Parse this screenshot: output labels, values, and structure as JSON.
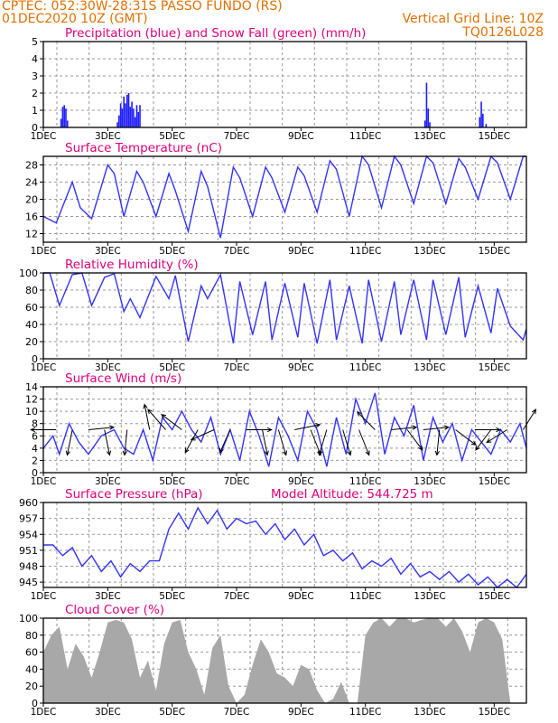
{
  "header": {
    "line1_left": "CPTEC:   052:30W-28:31S   PASSO FUNDO (RS)",
    "line2_left": "01DEC2020 10Z (GMT)",
    "line2_right": "Vertical Grid Line: 10Z",
    "line3_right": "TQ0126L028"
  },
  "colors": {
    "header_text": "#e07000",
    "panel_title": "#e0007a",
    "series_line": "#3333ff",
    "precip_bar": "#1e1eff",
    "snow": "#00aa00",
    "cloud_fill": "#a8a8a8",
    "wind_arrow": "#000000"
  },
  "x_axis": {
    "tick_labels": [
      "1DEC",
      "3DEC",
      "5DEC",
      "7DEC",
      "9DEC",
      "11DEC",
      "13DEC",
      "15DEC"
    ],
    "tick_days": [
      1,
      3,
      5,
      7,
      9,
      11,
      13,
      15
    ],
    "range_days": [
      1,
      16
    ]
  },
  "chart_data": [
    {
      "type": "bar",
      "title": "Precipitation (blue) and Snow Fall (green) (mm/h)",
      "ylim": [
        0,
        5
      ],
      "y_ticks": [
        0,
        1,
        2,
        3,
        4,
        5
      ],
      "grid": true,
      "series": [
        {
          "name": "Precipitation",
          "x": [
            1.55,
            1.6,
            1.65,
            1.7,
            1.75,
            3.3,
            3.35,
            3.4,
            3.45,
            3.5,
            3.55,
            3.6,
            3.65,
            3.7,
            3.75,
            3.8,
            3.85,
            3.9,
            3.95,
            4.0,
            12.85,
            12.9,
            12.95,
            13.0,
            14.55,
            14.6,
            14.65,
            14.75
          ],
          "values": [
            0.5,
            1.2,
            1.3,
            1.1,
            0.4,
            0.3,
            0.7,
            1.4,
            1.1,
            1.8,
            1.4,
            1.9,
            2.0,
            1.2,
            1.5,
            1.1,
            0.6,
            1.3,
            0.9,
            1.3,
            0.4,
            2.6,
            1.1,
            0.3,
            0.6,
            1.5,
            0.8,
            0.2
          ]
        },
        {
          "name": "Snow Fall",
          "x": [],
          "values": []
        }
      ]
    },
    {
      "type": "line",
      "title": "Surface Temperature (nC)",
      "ylim": [
        10,
        30
      ],
      "y_ticks": [
        12,
        16,
        20,
        24,
        28
      ],
      "grid": true,
      "series": [
        {
          "x": [
            1.0,
            1.4,
            1.9,
            2.15,
            2.5,
            3.0,
            3.2,
            3.5,
            3.9,
            4.1,
            4.5,
            4.9,
            5.1,
            5.5,
            5.9,
            6.1,
            6.5,
            6.9,
            7.1,
            7.5,
            7.9,
            8.1,
            8.5,
            8.9,
            9.1,
            9.5,
            9.9,
            10.1,
            10.5,
            10.9,
            11.1,
            11.5,
            11.9,
            12.1,
            12.5,
            12.9,
            13.1,
            13.5,
            13.9,
            14.1,
            14.5,
            14.9,
            15.1,
            15.5,
            15.9,
            16.0
          ],
          "values": [
            16,
            14.5,
            24,
            18,
            15.5,
            28,
            26,
            16,
            26.5,
            24,
            16,
            26,
            22,
            12.5,
            26.5,
            23,
            11,
            27.5,
            25,
            16,
            27.5,
            25,
            17,
            27.5,
            25.5,
            17,
            29,
            27,
            16,
            30,
            28,
            18,
            30,
            28,
            19,
            30,
            28.5,
            19,
            29.5,
            27.5,
            20,
            30,
            28.5,
            20,
            30,
            30
          ]
        }
      ]
    },
    {
      "type": "line",
      "title": "Relative Humidity (%)",
      "ylim": [
        0,
        100
      ],
      "y_ticks": [
        0,
        20,
        40,
        60,
        80,
        100
      ],
      "grid": true,
      "series": [
        {
          "x": [
            1.0,
            1.2,
            1.5,
            1.9,
            2.2,
            2.5,
            2.9,
            3.2,
            3.5,
            3.7,
            4.0,
            4.5,
            4.9,
            5.1,
            5.5,
            5.9,
            6.1,
            6.5,
            6.9,
            7.1,
            7.5,
            7.9,
            8.1,
            8.5,
            8.9,
            9.1,
            9.5,
            9.9,
            10.1,
            10.5,
            10.9,
            11.1,
            11.5,
            11.9,
            12.1,
            12.5,
            12.9,
            13.1,
            13.5,
            13.9,
            14.1,
            14.5,
            14.9,
            15.1,
            15.5,
            15.9,
            16.0
          ],
          "values": [
            100,
            100,
            62,
            98,
            100,
            62,
            95,
            99,
            55,
            70,
            48,
            96,
            70,
            97,
            20,
            85,
            70,
            98,
            18,
            90,
            28,
            90,
            22,
            88,
            25,
            88,
            18,
            92,
            22,
            85,
            18,
            92,
            20,
            90,
            28,
            92,
            22,
            92,
            28,
            95,
            25,
            85,
            30,
            82,
            38,
            22,
            35
          ]
        }
      ]
    },
    {
      "type": "line",
      "title": "Surface Wind (m/s)",
      "ylim": [
        0,
        14
      ],
      "y_ticks": [
        0,
        2,
        4,
        6,
        8,
        10,
        12,
        14
      ],
      "grid": true,
      "series": [
        {
          "x": [
            1.0,
            1.3,
            1.5,
            1.8,
            2.1,
            2.4,
            2.8,
            3.2,
            3.5,
            3.8,
            4.1,
            4.4,
            4.7,
            5.0,
            5.3,
            5.6,
            5.9,
            6.2,
            6.5,
            6.8,
            7.1,
            7.4,
            7.7,
            8.0,
            8.3,
            8.6,
            8.9,
            9.2,
            9.5,
            9.8,
            10.1,
            10.4,
            10.7,
            11.0,
            11.3,
            11.6,
            11.9,
            12.2,
            12.5,
            12.8,
            13.1,
            13.4,
            13.7,
            14.0,
            14.3,
            14.6,
            14.9,
            15.2,
            15.5,
            15.8,
            16.0
          ],
          "values": [
            4,
            6,
            3,
            8,
            5,
            3,
            6,
            7,
            4,
            3,
            7,
            2,
            9,
            7,
            10,
            7,
            5,
            9,
            3,
            7,
            2,
            10,
            6,
            1,
            9,
            6,
            2,
            10,
            7,
            1,
            9,
            3,
            12,
            8,
            13,
            3,
            9,
            6,
            11,
            2,
            9,
            5,
            8,
            2,
            7,
            5,
            3,
            7,
            5,
            8,
            4
          ]
        }
      ],
      "wind_vectors": [
        {
          "day": 1.4,
          "dx": -1.0,
          "dy": 0.0
        },
        {
          "day": 1.9,
          "dx": -0.2,
          "dy": -1.0
        },
        {
          "day": 2.4,
          "dx": 1.0,
          "dy": 0.1
        },
        {
          "day": 2.9,
          "dx": 0.2,
          "dy": -1.0
        },
        {
          "day": 3.6,
          "dx": -0.1,
          "dy": -1.0
        },
        {
          "day": 4.3,
          "dx": -0.2,
          "dy": 1.0
        },
        {
          "day": 4.8,
          "dx": -0.7,
          "dy": 0.8
        },
        {
          "day": 5.3,
          "dx": -0.8,
          "dy": 0.6
        },
        {
          "day": 5.8,
          "dx": -0.5,
          "dy": -0.9
        },
        {
          "day": 6.3,
          "dx": -0.9,
          "dy": -0.4
        },
        {
          "day": 6.8,
          "dx": -0.4,
          "dy": -0.9
        },
        {
          "day": 7.3,
          "dx": 1.0,
          "dy": 0.0
        },
        {
          "day": 7.8,
          "dx": 0.2,
          "dy": -1.0
        },
        {
          "day": 8.3,
          "dx": 0.3,
          "dy": -1.0
        },
        {
          "day": 8.8,
          "dx": 1.0,
          "dy": 0.2
        },
        {
          "day": 9.3,
          "dx": 0.4,
          "dy": -1.0
        },
        {
          "day": 9.8,
          "dx": -0.3,
          "dy": -1.0
        },
        {
          "day": 10.3,
          "dx": 0.3,
          "dy": -1.0
        },
        {
          "day": 10.8,
          "dx": 0.4,
          "dy": -1.0
        },
        {
          "day": 11.3,
          "dx": -0.7,
          "dy": 0.7
        },
        {
          "day": 11.8,
          "dx": 1.0,
          "dy": 0.1
        },
        {
          "day": 12.3,
          "dx": 0.6,
          "dy": -0.8
        },
        {
          "day": 12.8,
          "dx": 1.0,
          "dy": 0.1
        },
        {
          "day": 13.3,
          "dx": -0.1,
          "dy": -1.0
        },
        {
          "day": 13.8,
          "dx": 0.8,
          "dy": -0.6
        },
        {
          "day": 14.4,
          "dx": 1.0,
          "dy": 0.0
        },
        {
          "day": 14.9,
          "dx": -0.6,
          "dy": -0.8
        },
        {
          "day": 15.4,
          "dx": -0.8,
          "dy": -0.5
        },
        {
          "day": 15.9,
          "dx": 0.5,
          "dy": 0.8
        }
      ]
    },
    {
      "type": "line",
      "title": "Surface Pressure (hPa)",
      "annotation": "Model Altitude: 544.725 m",
      "ylim": [
        944,
        960
      ],
      "y_ticks": [
        945,
        948,
        951,
        954,
        957,
        960
      ],
      "grid": true,
      "series": [
        {
          "x": [
            1.0,
            1.3,
            1.6,
            1.9,
            2.2,
            2.5,
            2.8,
            3.1,
            3.4,
            3.7,
            4.0,
            4.3,
            4.6,
            4.9,
            5.2,
            5.5,
            5.8,
            6.1,
            6.4,
            6.7,
            7.0,
            7.3,
            7.6,
            7.9,
            8.2,
            8.5,
            8.8,
            9.1,
            9.4,
            9.7,
            10.0,
            10.3,
            10.6,
            10.9,
            11.2,
            11.5,
            11.8,
            12.1,
            12.4,
            12.7,
            13.0,
            13.3,
            13.6,
            13.9,
            14.2,
            14.5,
            14.8,
            15.1,
            15.4,
            15.7,
            16.0
          ],
          "values": [
            952,
            952,
            950,
            951.5,
            948,
            950,
            947,
            949,
            946,
            948.5,
            947,
            949,
            949,
            955,
            958,
            955,
            959,
            956,
            958.5,
            955,
            957,
            956,
            956.5,
            954,
            956,
            953,
            955,
            952,
            954,
            950,
            951,
            949,
            950.5,
            947.5,
            949,
            948,
            949.5,
            946.5,
            948.5,
            946,
            947,
            945.5,
            947,
            945,
            946.5,
            944.5,
            946,
            944,
            945.5,
            944,
            946.5
          ]
        }
      ]
    },
    {
      "type": "area",
      "title": "Cloud Cover (%)",
      "ylim": [
        0,
        100
      ],
      "y_ticks": [
        0,
        20,
        40,
        60,
        80,
        100
      ],
      "grid": true,
      "series": [
        {
          "x": [
            1.0,
            1.25,
            1.5,
            1.75,
            2.0,
            2.25,
            2.5,
            2.75,
            3.0,
            3.25,
            3.5,
            3.75,
            4.0,
            4.25,
            4.5,
            4.75,
            5.0,
            5.25,
            5.5,
            5.75,
            6.0,
            6.25,
            6.5,
            6.75,
            7.0,
            7.25,
            7.5,
            7.75,
            8.0,
            8.25,
            8.5,
            8.75,
            9.0,
            9.25,
            9.5,
            9.75,
            10.0,
            10.25,
            10.5,
            10.75,
            11.0,
            11.25,
            11.5,
            11.75,
            12.0,
            12.25,
            12.5,
            12.75,
            13.0,
            13.25,
            13.5,
            13.75,
            14.0,
            14.25,
            14.5,
            14.75,
            15.0,
            15.25,
            15.5,
            15.75,
            16.0
          ],
          "values": [
            60,
            80,
            90,
            40,
            70,
            55,
            30,
            60,
            95,
            98,
            95,
            75,
            30,
            50,
            15,
            70,
            95,
            98,
            60,
            40,
            10,
            65,
            80,
            20,
            0,
            10,
            45,
            75,
            60,
            35,
            30,
            20,
            45,
            40,
            15,
            0,
            5,
            25,
            0,
            0,
            80,
            95,
            100,
            90,
            100,
            100,
            95,
            98,
            100,
            100,
            90,
            100,
            85,
            60,
            95,
            100,
            95,
            75,
            0,
            0,
            0
          ]
        }
      ]
    }
  ]
}
